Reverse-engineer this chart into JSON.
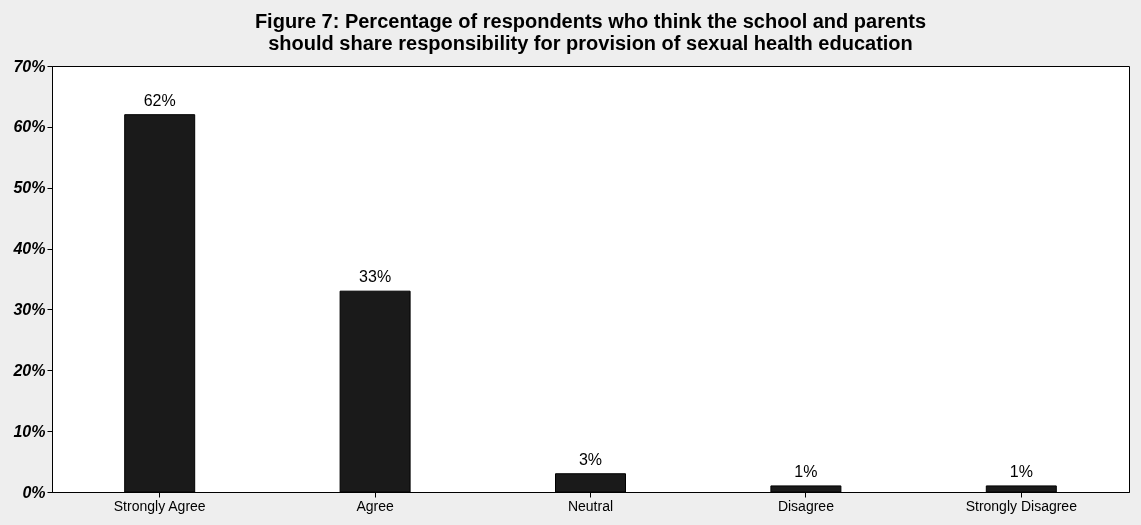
{
  "chart_data": {
    "type": "bar",
    "title": [
      "Figure 7: Percentage of respondents who think the school and parents",
      "should share responsibility for provision of sexual health education"
    ],
    "categories": [
      "Strongly Agree",
      "Agree",
      "Neutral",
      "Disagree",
      "Strongly Disagree"
    ],
    "values": [
      62,
      33,
      3,
      1,
      1
    ],
    "value_labels": [
      "62%",
      "33%",
      "3%",
      "1%",
      "1%"
    ],
    "color": "#1a1a1a",
    "ylim": [
      0,
      70
    ],
    "yticks": [
      {
        "value": 0,
        "label": "0%"
      },
      {
        "value": 10,
        "label": "10%"
      },
      {
        "value": 20,
        "label": "20%"
      },
      {
        "value": 30,
        "label": "30%"
      },
      {
        "value": 40,
        "label": "40%"
      },
      {
        "value": 50,
        "label": "50%"
      },
      {
        "value": 60,
        "label": "60%"
      },
      {
        "value": 70,
        "label": "70%"
      }
    ],
    "grid": false
  }
}
